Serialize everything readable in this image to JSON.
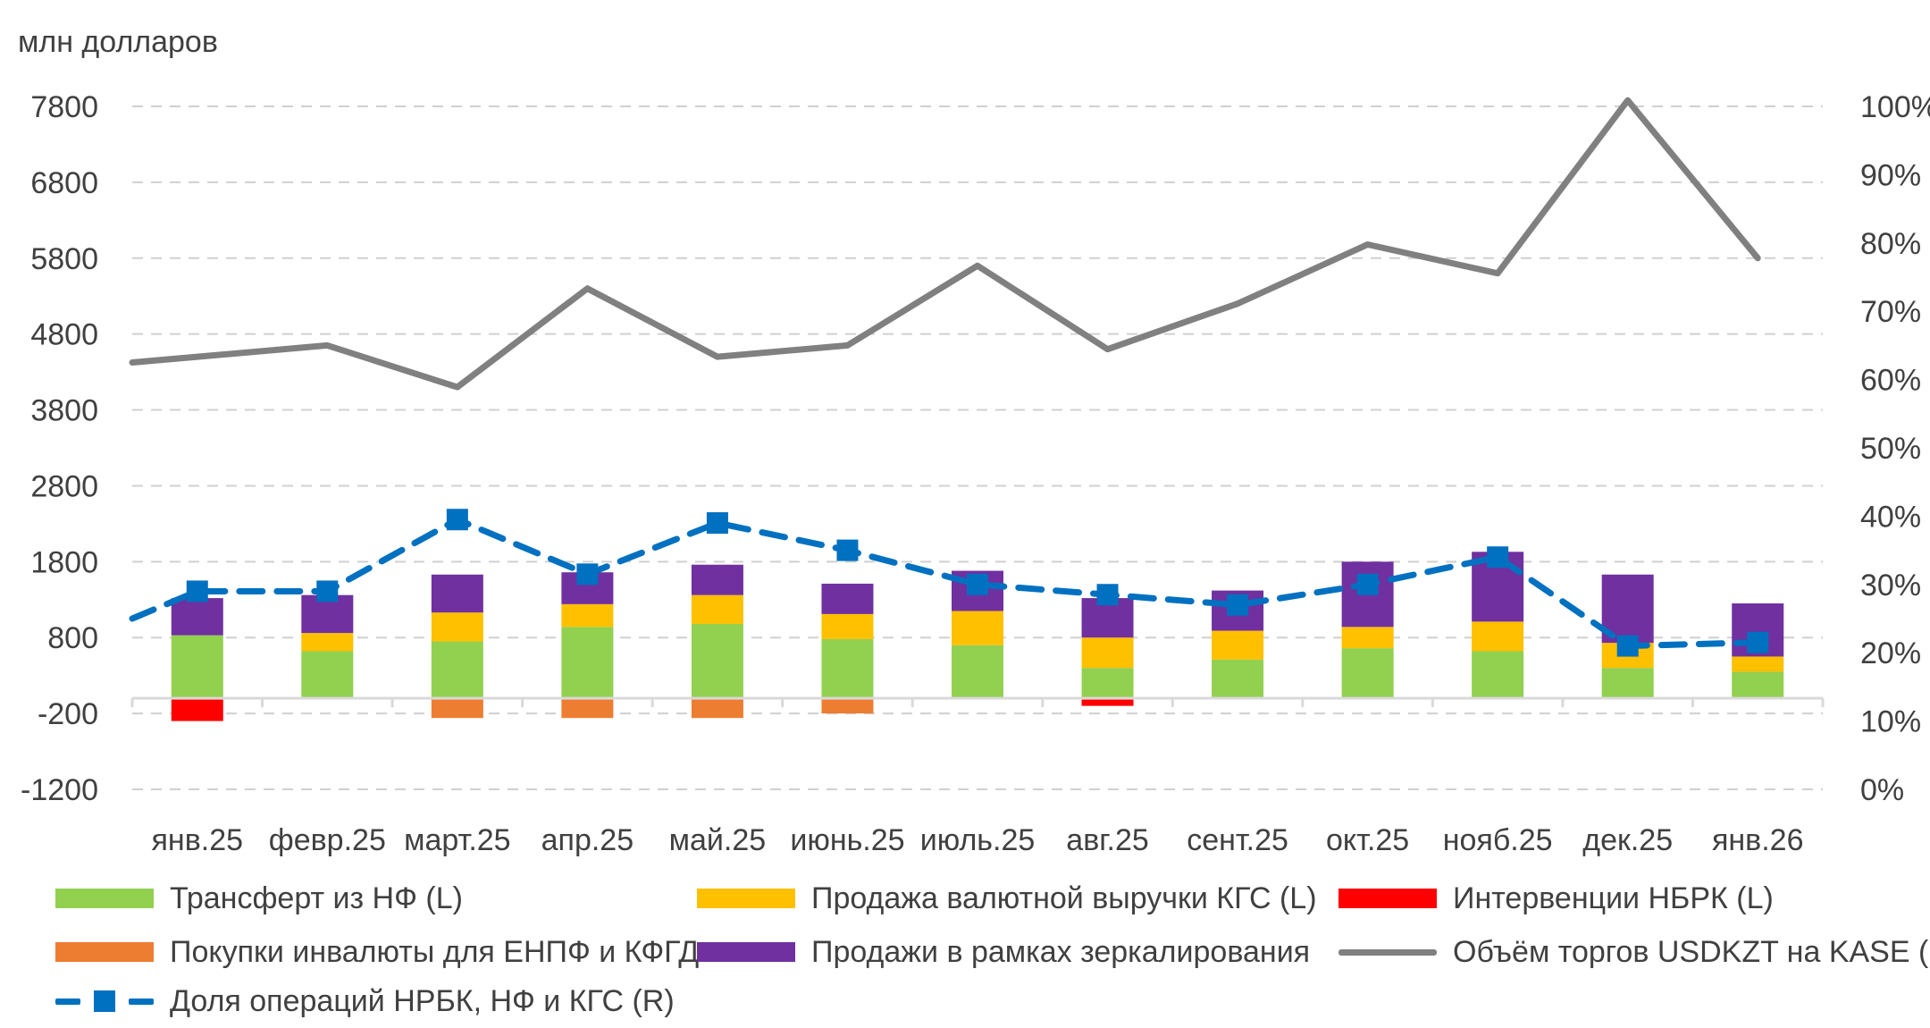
{
  "unit_label": "млн долларов",
  "chart_data": {
    "type": "bar",
    "categories": [
      "янв.25",
      "февр.25",
      "март.25",
      "апр.25",
      "май.25",
      "июнь.25",
      "июль.25",
      "авг.25",
      "сент.25",
      "окт.25",
      "нояб.25",
      "дек.25",
      "янв.26"
    ],
    "left_axis": {
      "ylim": [
        -1200,
        7800
      ],
      "ticks": [
        "7800",
        "6800",
        "5800",
        "4800",
        "3800",
        "2800",
        "1800",
        "800",
        "-200",
        "-1200"
      ]
    },
    "right_axis": {
      "ylim": [
        0,
        100
      ],
      "ticks": [
        "100%",
        "90%",
        "80%",
        "70%",
        "60%",
        "50%",
        "40%",
        "30%",
        "20%",
        "10%",
        "0%"
      ]
    },
    "grid": true,
    "legend_position": "bottom",
    "series": [
      {
        "name": "Трансферт из НФ (L)",
        "kind": "stacked-bar",
        "color": "#92d050",
        "values": [
          830,
          620,
          750,
          940,
          980,
          780,
          700,
          400,
          510,
          660,
          620,
          400,
          350
        ]
      },
      {
        "name": "Продажа валютной выручки КГС (L)",
        "kind": "stacked-bar",
        "color": "#ffc000",
        "values": [
          0,
          240,
          380,
          300,
          380,
          330,
          450,
          400,
          380,
          280,
          390,
          330,
          200
        ]
      },
      {
        "name": "Интервенции НБРК (L)",
        "kind": "stacked-bar",
        "color": "#ff0000",
        "values": [
          -300,
          0,
          0,
          0,
          0,
          0,
          0,
          -100,
          0,
          0,
          0,
          0,
          0
        ]
      },
      {
        "name": "Покупки инвалюты для ЕНПФ и КФГД",
        "kind": "stacked-bar",
        "color": "#ed7d31",
        "values": [
          0,
          0,
          -260,
          -260,
          -260,
          -200,
          0,
          0,
          0,
          0,
          0,
          0,
          0
        ]
      },
      {
        "name": "Продажи в рамках зеркалирования",
        "kind": "stacked-bar",
        "color": "#7030a0",
        "values": [
          490,
          500,
          500,
          420,
          400,
          400,
          530,
          520,
          530,
          860,
          920,
          900,
          700
        ]
      },
      {
        "name": "Объём торгов USDKZT на KASE (L)",
        "kind": "line",
        "color": "#808080",
        "values": [
          4500,
          4650,
          4100,
          5400,
          4500,
          4650,
          5700,
          4600,
          5200,
          5980,
          5600,
          7880,
          5800
        ]
      },
      {
        "name": "Доля операций НРБК, НФ и КГС (R)",
        "kind": "dashed-line-right",
        "color": "#0070c0",
        "values": [
          29,
          29,
          39.5,
          31.5,
          39,
          35,
          30,
          28.5,
          27,
          30,
          34,
          21,
          21.5
        ]
      }
    ]
  }
}
